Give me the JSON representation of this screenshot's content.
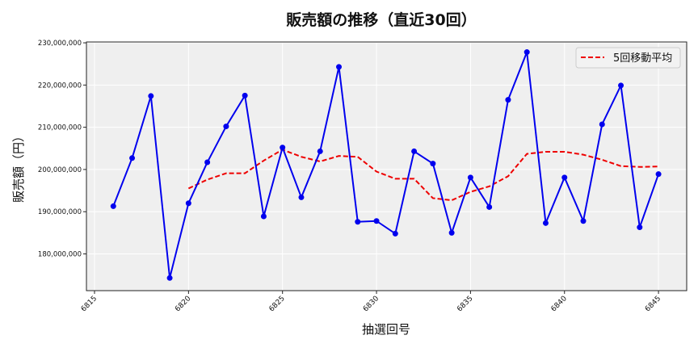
{
  "chart_data": {
    "type": "line",
    "title": "販売額の推移（直近30回）",
    "xlabel": "抽選回号",
    "ylabel": "販売額（円）",
    "xlim": [
      6814.57,
      6846.5
    ],
    "ylim": [
      171300000,
      230200000
    ],
    "x_ticks": [
      6815,
      6820,
      6825,
      6830,
      6835,
      6840,
      6845
    ],
    "y_ticks": [
      180000000,
      190000000,
      200000000,
      210000000,
      220000000,
      230000000
    ],
    "y_tick_labels": [
      "180,000,000",
      "190,000,000",
      "200,000,000",
      "210,000,000",
      "220,000,000",
      "230,000,000"
    ],
    "grid": true,
    "legend_position": "top-right",
    "x": [
      6816,
      6817,
      6818,
      6819,
      6820,
      6821,
      6822,
      6823,
      6824,
      6825,
      6826,
      6827,
      6828,
      6829,
      6830,
      6831,
      6832,
      6833,
      6834,
      6835,
      6836,
      6837,
      6838,
      6839,
      6840,
      6841,
      6842,
      6843,
      6844,
      6845
    ],
    "series": [
      {
        "color": "#0000ee",
        "style": "solid-markers",
        "values": [
          191300000,
          202700000,
          217400000,
          174300000,
          192000000,
          201700000,
          210200000,
          217500000,
          188900000,
          205200000,
          193400000,
          204300000,
          224300000,
          187600000,
          187800000,
          184800000,
          204300000,
          201400000,
          185000000,
          198100000,
          191100000,
          216500000,
          227800000,
          187300000,
          198100000,
          187800000,
          210700000,
          219900000,
          186300000,
          198900000
        ]
      },
      {
        "name": "5回移動平均",
        "color": "#ee0000",
        "style": "dashed",
        "values": [
          null,
          null,
          null,
          null,
          195500000,
          197600000,
          199100000,
          199100000,
          202100000,
          204700000,
          203000000,
          201900000,
          203200000,
          203000000,
          199500000,
          197800000,
          197800000,
          193200000,
          192700000,
          194700000,
          196000000,
          198400000,
          203700000,
          204200000,
          204200000,
          203500000,
          202300000,
          200800000,
          200600000,
          200700000
        ]
      }
    ]
  }
}
